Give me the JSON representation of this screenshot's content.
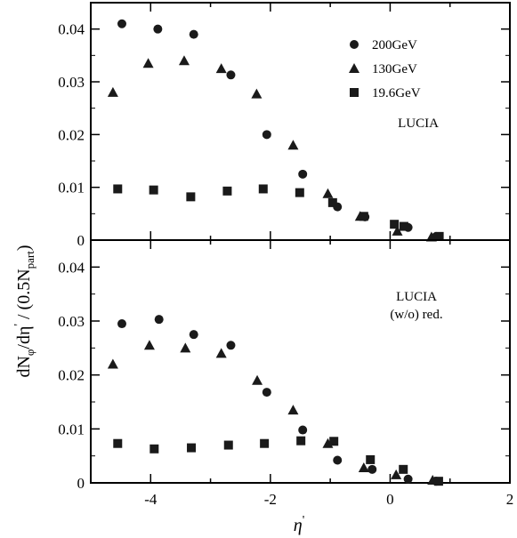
{
  "chart_data": [
    {
      "type": "scatter",
      "panel": "top",
      "annotation": [
        "LUCIA"
      ],
      "ylim": [
        0,
        0.045
      ],
      "xlim": [
        -5,
        2
      ],
      "yticks": [
        0,
        0.01,
        0.02,
        0.03,
        0.04
      ],
      "ytick_labels": [
        "0",
        "0.01",
        "0.02",
        "0.03",
        "0.04"
      ],
      "grid": false,
      "legend_position": "top-right",
      "series": [
        {
          "name": "200GeV",
          "marker": "circle",
          "x": [
            -4.48,
            -3.88,
            -3.28,
            -2.66,
            -2.06,
            -1.46,
            -0.88,
            -0.42,
            0.3,
            0.77
          ],
          "y": [
            0.041,
            0.04,
            0.039,
            0.0313,
            0.02,
            0.0125,
            0.0063,
            0.0044,
            0.0024,
            0.0007
          ]
        },
        {
          "name": "130GeV",
          "marker": "triangle",
          "x": [
            -4.63,
            -4.04,
            -3.44,
            -2.82,
            -2.23,
            -1.62,
            -1.04,
            -0.5,
            0.12,
            0.69
          ],
          "y": [
            0.028,
            0.0335,
            0.034,
            0.0325,
            0.0277,
            0.018,
            0.0088,
            0.0045,
            0.0017,
            0.0006
          ]
        },
        {
          "name": "19.6GeV",
          "marker": "square",
          "x": [
            -4.55,
            -3.95,
            -3.33,
            -2.72,
            -2.12,
            -1.51,
            -0.96,
            -0.44,
            0.07,
            0.23,
            0.82
          ],
          "y": [
            0.0097,
            0.0095,
            0.0082,
            0.0093,
            0.0097,
            0.009,
            0.0071,
            0.0045,
            0.003,
            0.0026,
            0.0007
          ]
        }
      ]
    },
    {
      "type": "scatter",
      "panel": "bottom",
      "annotation": [
        "LUCIA",
        "(w/o) red."
      ],
      "ylim": [
        0,
        0.045
      ],
      "xlim": [
        -5,
        2
      ],
      "yticks": [
        0,
        0.01,
        0.02,
        0.03,
        0.04
      ],
      "ytick_labels": [
        "0",
        "0.01",
        "0.02",
        "0.03",
        "0.04"
      ],
      "xticks": [
        -4,
        -2,
        0,
        2
      ],
      "xtick_labels": [
        "-4",
        "-2",
        "0",
        "2"
      ],
      "grid": false,
      "series": [
        {
          "name": "200GeV",
          "marker": "circle",
          "x": [
            -4.48,
            -3.86,
            -3.28,
            -2.66,
            -2.06,
            -1.46,
            -0.88,
            -0.3,
            0.3,
            0.77
          ],
          "y": [
            0.0295,
            0.0303,
            0.0275,
            0.0255,
            0.0168,
            0.0098,
            0.0042,
            0.0025,
            0.0007,
            0.0003
          ]
        },
        {
          "name": "130GeV",
          "marker": "triangle",
          "x": [
            -4.63,
            -4.02,
            -3.42,
            -2.82,
            -2.22,
            -1.62,
            -1.04,
            -0.44,
            0.1,
            0.71
          ],
          "y": [
            0.022,
            0.0255,
            0.025,
            0.024,
            0.019,
            0.0135,
            0.0073,
            0.0028,
            0.0015,
            0.0005
          ]
        },
        {
          "name": "19.6GeV",
          "marker": "square",
          "x": [
            -4.55,
            -3.94,
            -3.32,
            -2.7,
            -2.1,
            -1.49,
            -0.94,
            -0.33,
            0.22,
            0.81
          ],
          "y": [
            0.0073,
            0.0063,
            0.0065,
            0.007,
            0.0073,
            0.0078,
            0.0077,
            0.0043,
            0.0025,
            0.0003
          ]
        }
      ]
    }
  ],
  "labels": {
    "ylabel_main": "dN",
    "ylabel_sub1": "φ",
    "ylabel_mid": "/dη",
    "ylabel_prime": "'",
    "ylabel_tail": " / (0.5N",
    "ylabel_sub2": "part",
    "ylabel_end": ")",
    "xlabel_main": "η",
    "xlabel_prime": "'"
  },
  "colors": {
    "marker": "#1a1a1a",
    "axis": "#000000",
    "background": "#ffffff"
  }
}
